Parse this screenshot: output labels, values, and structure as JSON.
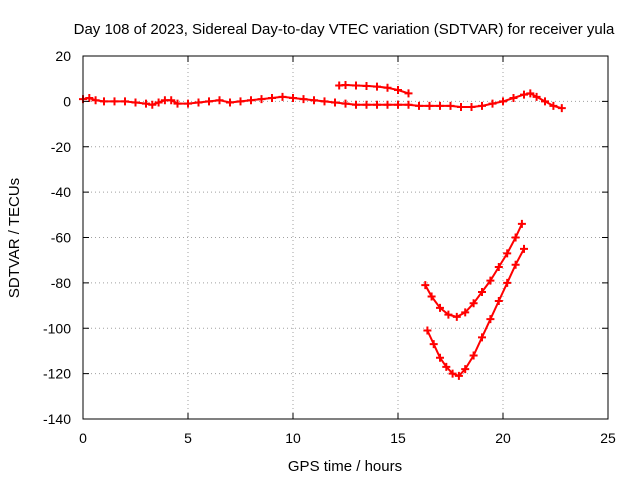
{
  "chart_data": {
    "type": "scatter",
    "title": "Day 108 of 2023, Sidereal Day-to-day VTEC variation (SDTVAR) for receiver yula",
    "xlabel": "GPS time / hours",
    "ylabel": "SDTVAR / TECUs",
    "xlim": [
      0,
      25
    ],
    "ylim": [
      -140,
      20
    ],
    "xticks": [
      0,
      5,
      10,
      15,
      20,
      25
    ],
    "yticks": [
      20,
      0,
      -20,
      -40,
      -60,
      -80,
      -100,
      -120,
      -140
    ],
    "grid": true,
    "legend": "none",
    "marker": "plus",
    "color": "#ff0000",
    "series": [
      {
        "x": [
          0.0,
          0.3,
          0.6,
          1.0,
          1.5,
          2.0,
          2.5,
          3.0,
          3.3,
          3.6,
          3.9,
          4.2,
          4.5,
          5.0,
          5.5,
          6.0,
          6.5,
          7.0,
          7.5,
          8.0,
          8.5,
          9.0,
          9.5,
          10.0,
          10.5,
          11.0,
          11.5,
          12.0,
          12.5,
          13.0,
          13.5,
          14.0,
          14.5,
          15.0,
          15.5,
          16.0,
          16.5,
          17.0,
          17.5,
          18.0,
          18.5,
          19.0,
          19.5,
          20.0,
          20.5,
          21.0,
          21.3,
          21.6,
          22.0,
          22.4,
          22.8
        ],
        "y": [
          1,
          1.5,
          0.5,
          0,
          0,
          0,
          -0.5,
          -1,
          -1.5,
          -0.5,
          0.5,
          0.5,
          -1,
          -1,
          -0.5,
          0,
          0.5,
          -0.5,
          0,
          0.5,
          1,
          1.5,
          2,
          1.5,
          1,
          0.5,
          0,
          -0.5,
          -1,
          -1.5,
          -1.5,
          -1.5,
          -1.5,
          -1.5,
          -1.5,
          -2,
          -2,
          -2,
          -2,
          -2.5,
          -2.5,
          -2,
          -1,
          0,
          1.5,
          3,
          3.5,
          2,
          0,
          -2,
          -3
        ]
      },
      {
        "x": [
          12.2,
          12.5,
          13.0,
          13.5,
          14.0,
          14.5,
          15.0,
          15.5
        ],
        "y": [
          7,
          7.2,
          7,
          6.8,
          6.5,
          6,
          5,
          3.5
        ]
      },
      {
        "x": [
          16.3,
          16.6,
          17.0,
          17.4,
          17.8,
          18.2,
          18.6,
          19.0,
          19.4,
          19.8,
          20.2,
          20.6,
          20.9
        ],
        "y": [
          -81,
          -86,
          -91,
          -94,
          -95,
          -93,
          -89,
          -84,
          -79,
          -73,
          -67,
          -60,
          -54
        ]
      },
      {
        "x": [
          16.4,
          16.7,
          17.0,
          17.3,
          17.6,
          17.9,
          18.2,
          18.6,
          19.0,
          19.4,
          19.8,
          20.2,
          20.6,
          21.0
        ],
        "y": [
          -101,
          -107,
          -113,
          -117,
          -120,
          -121,
          -118,
          -112,
          -104,
          -96,
          -88,
          -80,
          -72,
          -65
        ]
      }
    ]
  }
}
